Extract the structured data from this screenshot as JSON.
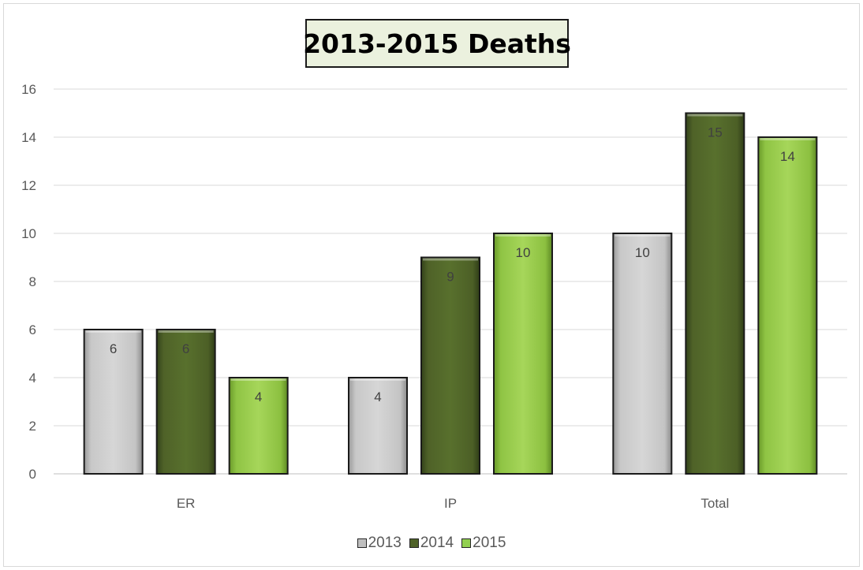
{
  "chart_data": {
    "type": "bar",
    "title": "2013-2015 Deaths",
    "categories": [
      "ER",
      "IP",
      "Total"
    ],
    "series": [
      {
        "name": "2013",
        "values": [
          6,
          4,
          10
        ],
        "color": "#bfbfbf"
      },
      {
        "name": "2014",
        "values": [
          6,
          9,
          15
        ],
        "color": "#4f6228"
      },
      {
        "name": "2015",
        "values": [
          4,
          10,
          14
        ],
        "color": "#92d050"
      }
    ],
    "yticks": [
      "0",
      "2",
      "4",
      "6",
      "8",
      "10",
      "12",
      "14",
      "16"
    ],
    "ylim": [
      0,
      16
    ],
    "grid": true,
    "legend_position": "bottom",
    "xlabel": "",
    "ylabel": ""
  }
}
